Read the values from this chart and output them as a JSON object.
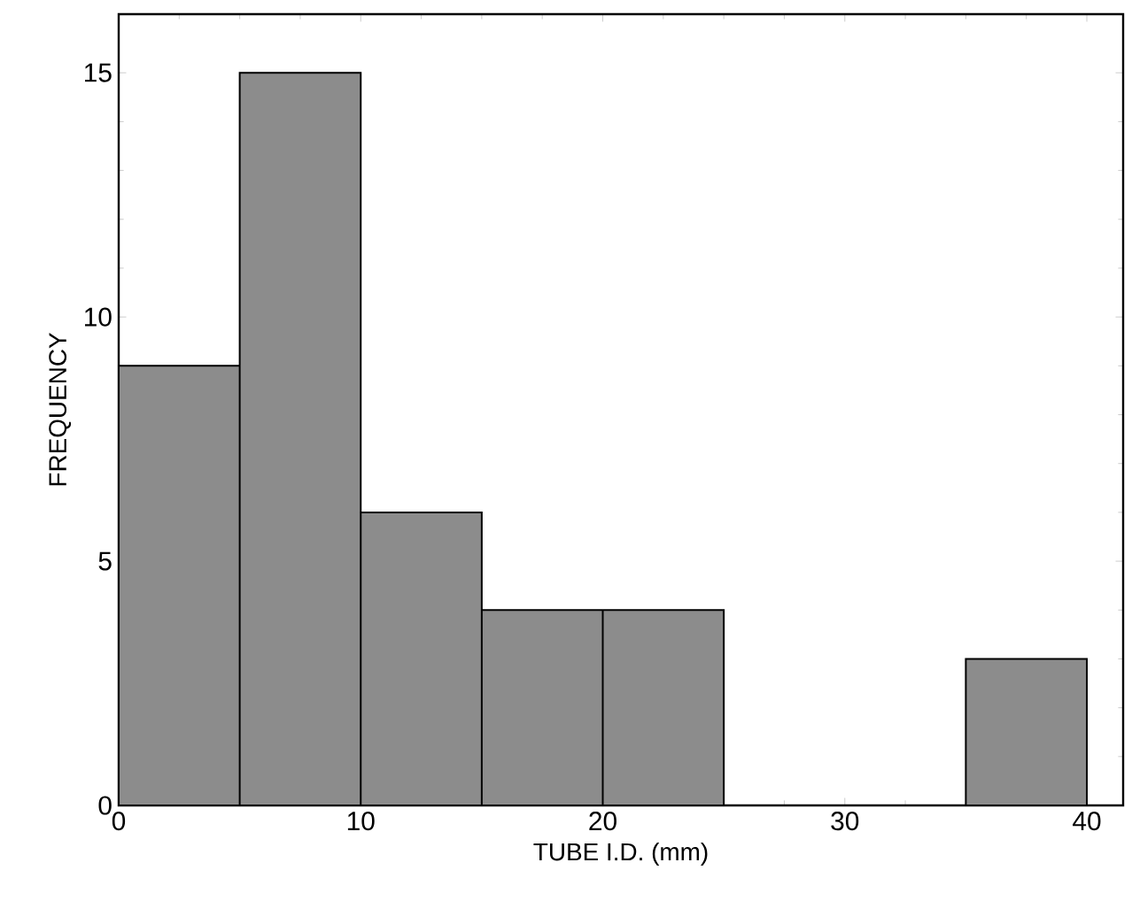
{
  "chart_data": {
    "type": "histogram",
    "xlabel": "TUBE I.D. (mm)",
    "ylabel": "FREQUENCY",
    "bins": [
      0,
      5,
      10,
      15,
      20,
      25,
      30,
      35,
      40
    ],
    "values": [
      9,
      15,
      6,
      4,
      4,
      0,
      0,
      3
    ],
    "color": "#8c8c8c",
    "xlim": [
      0,
      41.5
    ],
    "ylim": [
      0,
      16.2
    ],
    "xticks": [
      0,
      10,
      20,
      30,
      40
    ],
    "yticks": [
      0,
      5,
      10,
      15
    ],
    "grid": false
  }
}
